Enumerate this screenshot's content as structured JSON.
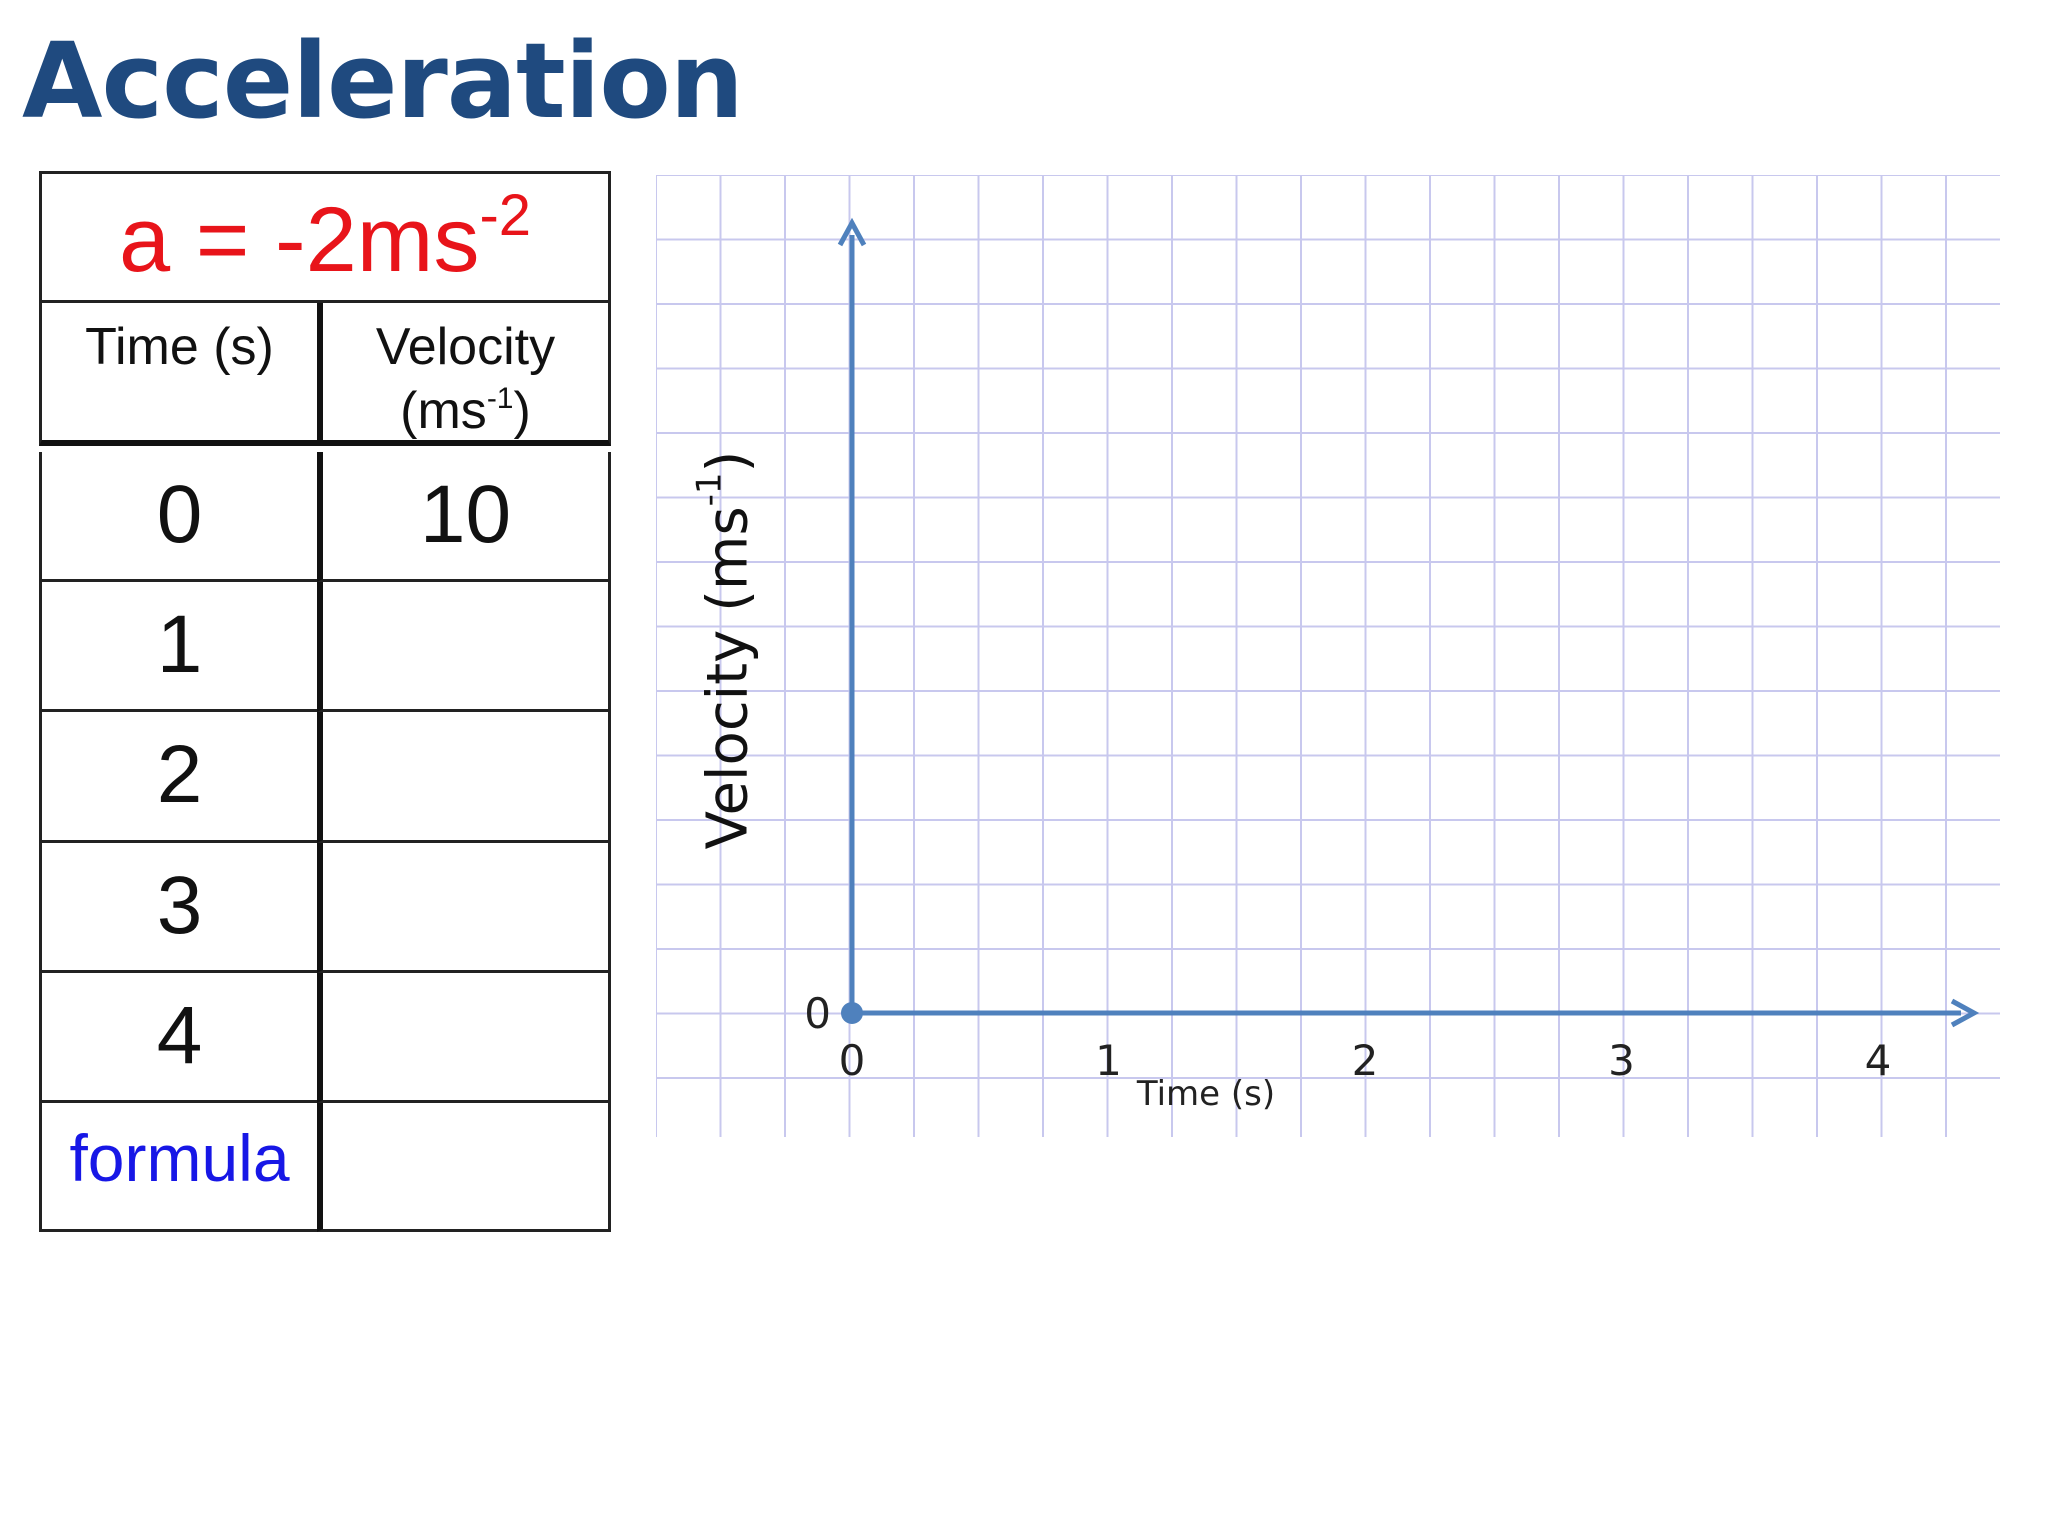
{
  "slide": {
    "title": "Acceleration"
  },
  "table": {
    "formula": {
      "text": "a = -2ms",
      "exp": "-2"
    },
    "headers": {
      "time": "Time (s)",
      "velocity_line1": "Velocity",
      "velocity_line2_pre": "(ms",
      "velocity_line2_exp": "-1",
      "velocity_line2_post": ")"
    },
    "rows": [
      {
        "time": "0",
        "velocity": "10"
      },
      {
        "time": "1",
        "velocity": ""
      },
      {
        "time": "2",
        "velocity": ""
      },
      {
        "time": "3",
        "velocity": ""
      },
      {
        "time": "4",
        "velocity": ""
      }
    ],
    "formula_label": "formula",
    "formula_value": ""
  },
  "chart_data": {
    "type": "line",
    "xlabel": "Time (s)",
    "ylabel_pre": "Velocity (ms",
    "ylabel_exp": "-1",
    "ylabel_post": ")",
    "x_ticks": [
      "0",
      "1",
      "2",
      "3",
      "4"
    ],
    "y_ticks": [
      "0"
    ],
    "xlim": [
      0,
      4
    ],
    "series": [],
    "grid": true,
    "colors": {
      "axis": "#4f81bd",
      "grid": "#c8c8ee",
      "formula": "#e8141a",
      "formula_label": "#1717e6",
      "title": "#1f4a7f"
    }
  }
}
